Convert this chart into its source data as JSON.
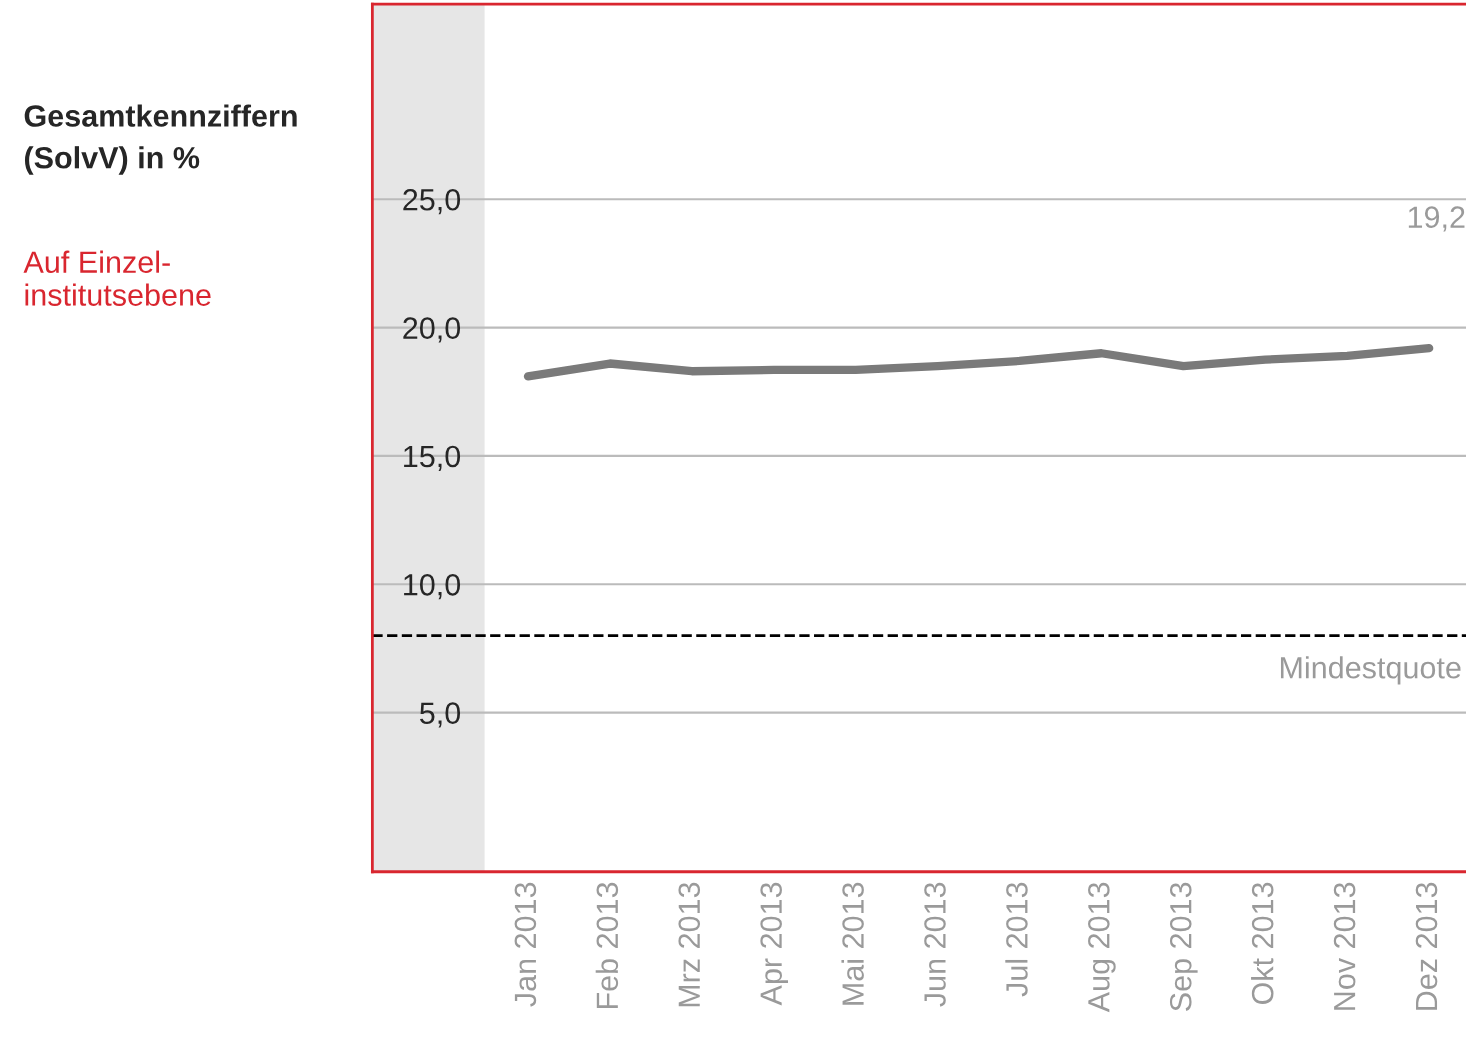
{
  "chart_data": {
    "type": "line",
    "title": "Gesamtkennziffern (SolvV) in %",
    "subtitle": "Auf Einzel-institutsebene",
    "categories": [
      "Jan 2013",
      "Feb 2013",
      "Mrz 2013",
      "Apr 2013",
      "Mai 2013",
      "Jun 2013",
      "Jul 2013",
      "Aug 2013",
      "Sep 2013",
      "Okt 2013",
      "Nov 2013",
      "Dez 2013"
    ],
    "series": [
      {
        "color": "#7a7a7a",
        "values": [
          18.1,
          18.6,
          18.3,
          18.35,
          18.35,
          18.5,
          18.7,
          19.0,
          18.5,
          18.75,
          18.9,
          19.2
        ]
      }
    ],
    "ylim": [
      -1.2,
      32.6
    ],
    "yticks": [
      {
        "value": 5,
        "label": "5,0"
      },
      {
        "value": 10,
        "label": "10,0"
      },
      {
        "value": 15,
        "label": "15,0"
      },
      {
        "value": 20,
        "label": "20,0"
      },
      {
        "value": 25,
        "label": "25,0"
      }
    ],
    "ref_lines": [
      {
        "axis": "y",
        "value": 8,
        "label": "Mindestquote",
        "color": "#000000",
        "line_style": "dashed"
      }
    ],
    "annotations": [
      "19,2"
    ],
    "grid": "y",
    "legend": false,
    "marker": "none",
    "line_style": "solid"
  }
}
